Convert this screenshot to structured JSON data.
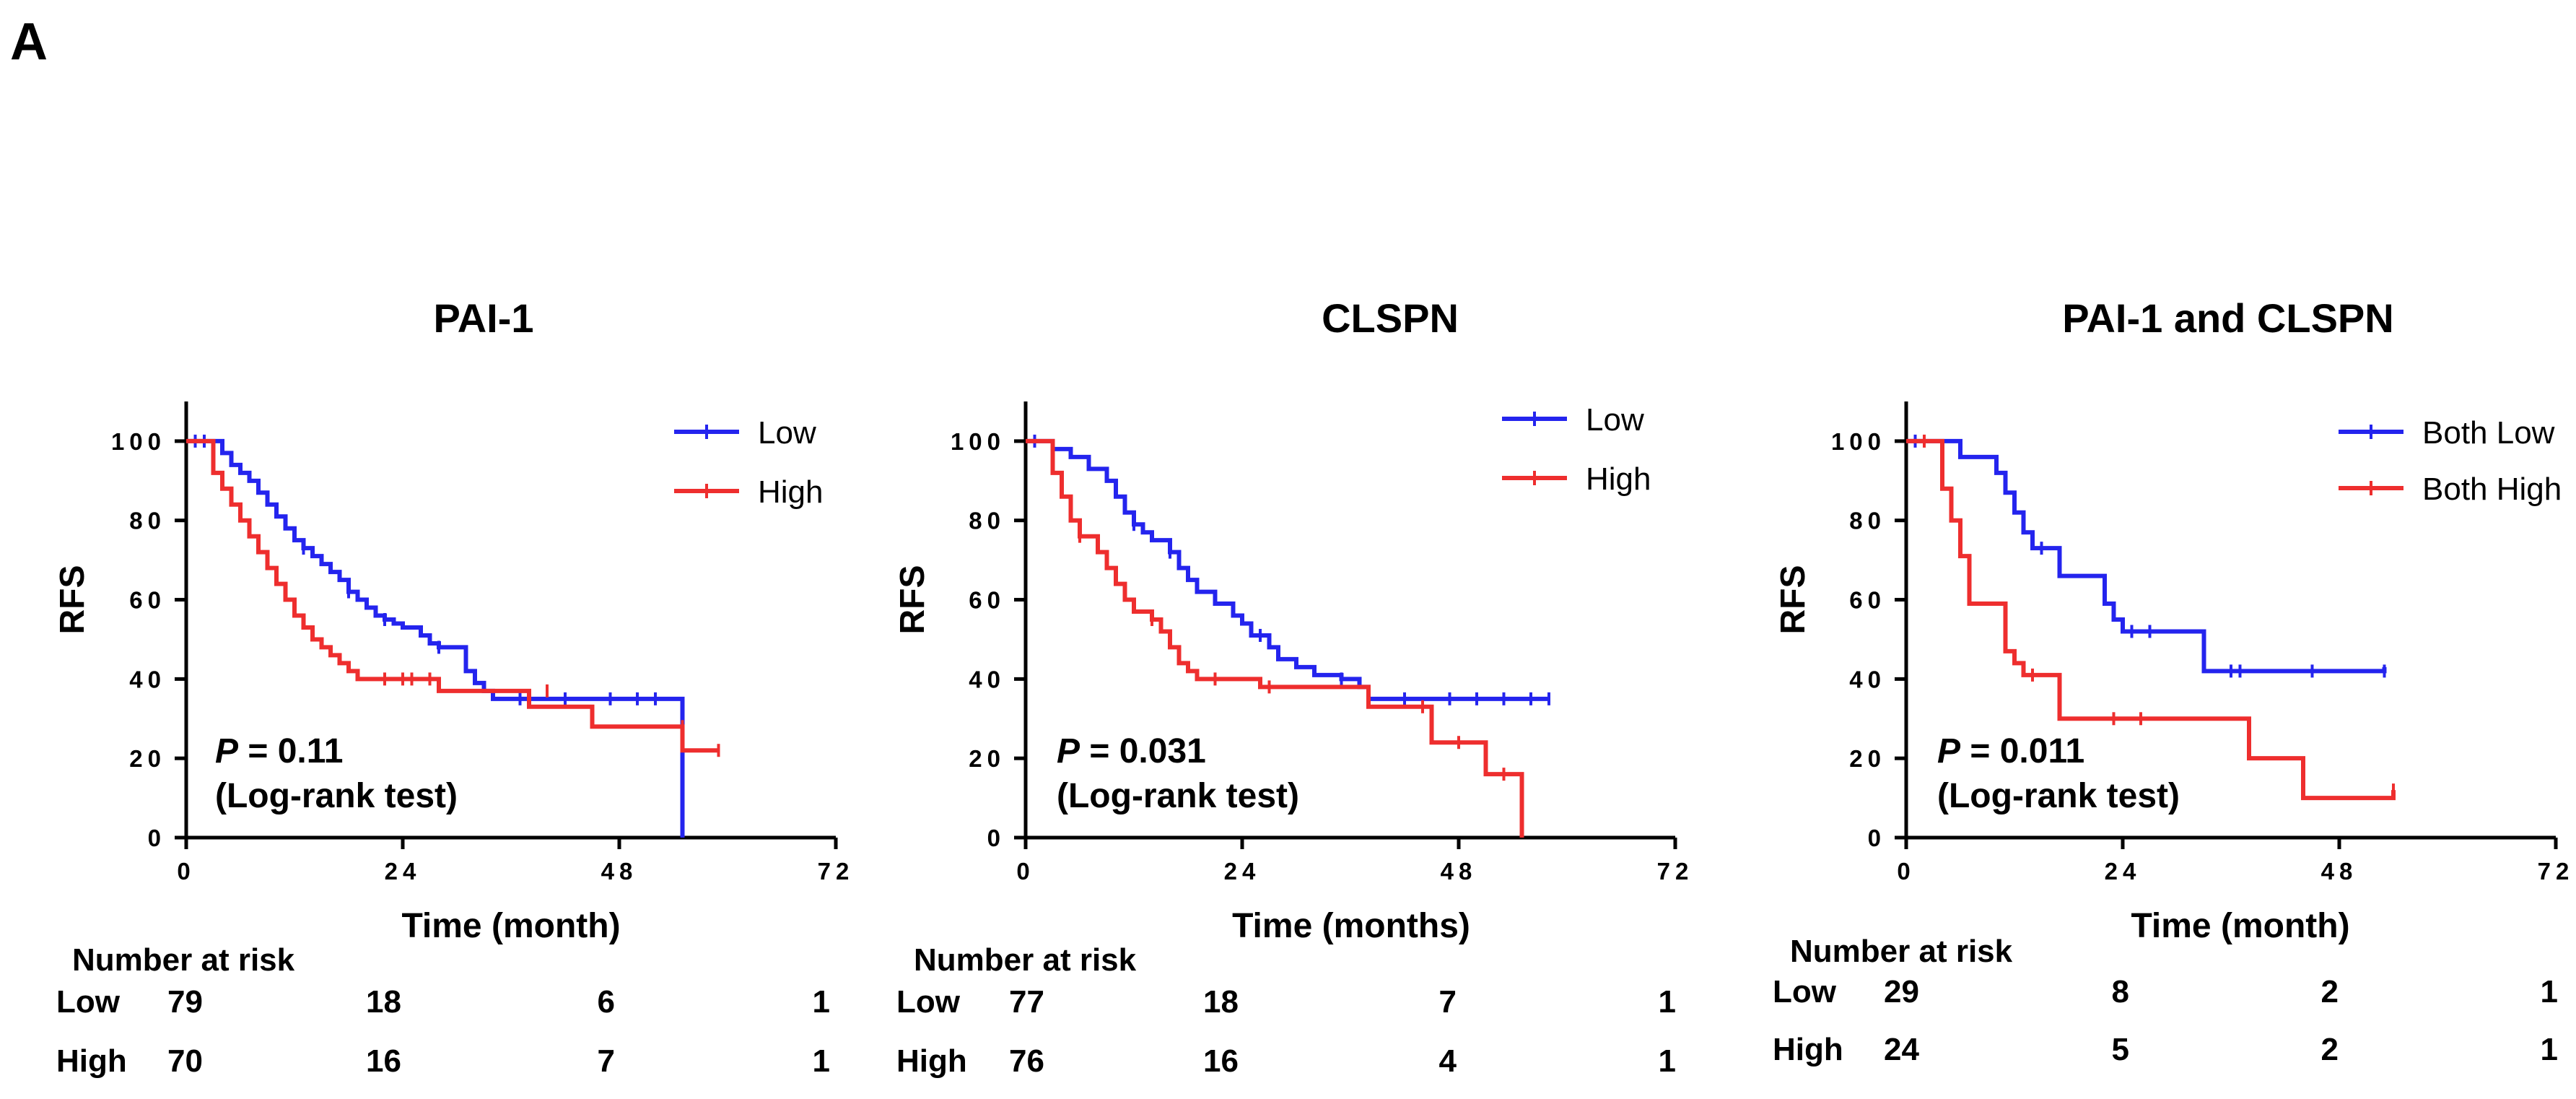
{
  "panel_label": "A",
  "colors": {
    "low": "#2424ee",
    "high": "#ee2e2e",
    "axis": "#000000"
  },
  "chart_data": [
    {
      "type": "line",
      "title": "PAI-1",
      "xlabel": "Time (month)",
      "ylabel": "RFS",
      "xlim": [
        0,
        72
      ],
      "ylim": [
        0,
        110
      ],
      "xticks": [
        "0",
        "24",
        "48",
        "72"
      ],
      "yticks": [
        "0",
        "20",
        "40",
        "60",
        "80",
        "100"
      ],
      "pvalue": {
        "prefix": "P",
        "text": "= 0.11",
        "test": "(Log-rank test)"
      },
      "legend": [
        "Low",
        "High"
      ],
      "series": [
        {
          "name": "Low",
          "steps": [
            [
              0,
              100
            ],
            [
              3,
              100
            ],
            [
              4,
              97
            ],
            [
              5,
              94
            ],
            [
              6,
              92
            ],
            [
              7,
              90
            ],
            [
              8,
              87
            ],
            [
              9,
              84
            ],
            [
              10,
              81
            ],
            [
              11,
              78
            ],
            [
              12,
              75
            ],
            [
              13,
              73
            ],
            [
              14,
              71
            ],
            [
              15,
              69
            ],
            [
              16,
              67
            ],
            [
              17,
              65
            ],
            [
              18,
              62
            ],
            [
              19,
              60
            ],
            [
              20,
              58
            ],
            [
              21,
              56
            ],
            [
              22,
              55
            ],
            [
              23,
              54
            ],
            [
              24,
              53
            ],
            [
              26,
              51
            ],
            [
              27,
              49
            ],
            [
              28,
              48
            ],
            [
              30,
              48
            ],
            [
              31,
              42
            ],
            [
              32,
              39
            ],
            [
              33,
              37
            ],
            [
              34,
              35
            ],
            [
              55,
              35
            ],
            [
              55,
              0
            ]
          ],
          "censored": [
            [
              1,
              100
            ],
            [
              2,
              100
            ],
            [
              13,
              73
            ],
            [
              18,
              62
            ],
            [
              22,
              55
            ],
            [
              28,
              48
            ],
            [
              37,
              35
            ],
            [
              42,
              35
            ],
            [
              47,
              35
            ],
            [
              50,
              35
            ],
            [
              52,
              35
            ]
          ]
        },
        {
          "name": "High",
          "steps": [
            [
              0,
              100
            ],
            [
              2,
              100
            ],
            [
              3,
              92
            ],
            [
              4,
              88
            ],
            [
              5,
              84
            ],
            [
              6,
              80
            ],
            [
              7,
              76
            ],
            [
              8,
              72
            ],
            [
              9,
              68
            ],
            [
              10,
              64
            ],
            [
              11,
              60
            ],
            [
              12,
              56
            ],
            [
              13,
              53
            ],
            [
              14,
              50
            ],
            [
              15,
              48
            ],
            [
              16,
              46
            ],
            [
              17,
              44
            ],
            [
              18,
              42
            ],
            [
              19,
              40
            ],
            [
              20,
              40
            ],
            [
              27,
              40
            ],
            [
              28,
              37
            ],
            [
              38,
              37
            ],
            [
              38,
              33
            ],
            [
              45,
              33
            ],
            [
              45,
              28
            ],
            [
              55,
              28
            ],
            [
              55,
              22
            ],
            [
              59,
              22
            ]
          ],
          "censored": [
            [
              22,
              40
            ],
            [
              24,
              40
            ],
            [
              25,
              40
            ],
            [
              27,
              40
            ],
            [
              40,
              37
            ],
            [
              55,
              28
            ],
            [
              59,
              22
            ]
          ]
        }
      ],
      "risk_table": {
        "title": "Number at risk",
        "rows": [
          {
            "label": "Low",
            "values": [
              "79",
              "18",
              "6",
              "1"
            ]
          },
          {
            "label": "High",
            "values": [
              "70",
              "16",
              "7",
              "1"
            ]
          }
        ]
      }
    },
    {
      "type": "line",
      "title": "CLSPN",
      "xlabel": "Time (months)",
      "ylabel": "RFS",
      "xlim": [
        0,
        72
      ],
      "ylim": [
        0,
        110
      ],
      "xticks": [
        "0",
        "24",
        "48",
        "72"
      ],
      "yticks": [
        "0",
        "20",
        "40",
        "60",
        "80",
        "100"
      ],
      "pvalue": {
        "prefix": "P",
        "text": "= 0.031",
        "test": "(Log-rank test)"
      },
      "legend": [
        "Low",
        "High"
      ],
      "series": [
        {
          "name": "Low",
          "steps": [
            [
              0,
              100
            ],
            [
              2,
              100
            ],
            [
              3,
              98
            ],
            [
              5,
              96
            ],
            [
              7,
              93
            ],
            [
              9,
              90
            ],
            [
              10,
              86
            ],
            [
              11,
              82
            ],
            [
              12,
              79
            ],
            [
              13,
              77
            ],
            [
              14,
              75
            ],
            [
              16,
              72
            ],
            [
              17,
              68
            ],
            [
              18,
              65
            ],
            [
              19,
              62
            ],
            [
              21,
              59
            ],
            [
              23,
              56
            ],
            [
              24,
              54
            ],
            [
              25,
              51
            ],
            [
              27,
              48
            ],
            [
              28,
              45
            ],
            [
              30,
              43
            ],
            [
              32,
              41
            ],
            [
              35,
              40
            ],
            [
              37,
              38
            ],
            [
              38,
              35
            ],
            [
              58,
              35
            ]
          ],
          "censored": [
            [
              1,
              100
            ],
            [
              12,
              79
            ],
            [
              16,
              72
            ],
            [
              26,
              51
            ],
            [
              35,
              40
            ],
            [
              38,
              35
            ],
            [
              42,
              35
            ],
            [
              47,
              35
            ],
            [
              50,
              35
            ],
            [
              53,
              35
            ],
            [
              56,
              35
            ],
            [
              58,
              35
            ]
          ]
        },
        {
          "name": "High",
          "steps": [
            [
              0,
              100
            ],
            [
              2,
              100
            ],
            [
              3,
              92
            ],
            [
              4,
              86
            ],
            [
              5,
              80
            ],
            [
              6,
              76
            ],
            [
              8,
              72
            ],
            [
              9,
              68
            ],
            [
              10,
              64
            ],
            [
              11,
              60
            ],
            [
              12,
              57
            ],
            [
              14,
              55
            ],
            [
              15,
              52
            ],
            [
              16,
              48
            ],
            [
              17,
              44
            ],
            [
              18,
              42
            ],
            [
              19,
              40
            ],
            [
              25,
              40
            ],
            [
              26,
              38
            ],
            [
              37,
              38
            ],
            [
              38,
              33
            ],
            [
              44,
              33
            ],
            [
              45,
              24
            ],
            [
              51,
              24
            ],
            [
              51,
              16
            ],
            [
              55,
              16
            ],
            [
              55,
              0
            ]
          ],
          "censored": [
            [
              6,
              76
            ],
            [
              14,
              55
            ],
            [
              21,
              40
            ],
            [
              27,
              38
            ],
            [
              44,
              33
            ],
            [
              48,
              24
            ],
            [
              53,
              16
            ]
          ]
        }
      ],
      "risk_table": {
        "title": "Number at risk",
        "rows": [
          {
            "label": "Low",
            "values": [
              "77",
              "18",
              "7",
              "1"
            ]
          },
          {
            "label": "High",
            "values": [
              "76",
              "16",
              "4",
              "1"
            ]
          }
        ]
      }
    },
    {
      "type": "line",
      "title": "PAI-1 and CLSPN",
      "xlabel": "Time (month)",
      "ylabel": "RFS",
      "xlim": [
        0,
        72
      ],
      "ylim": [
        0,
        110
      ],
      "xticks": [
        "0",
        "24",
        "48",
        "72"
      ],
      "yticks": [
        "0",
        "20",
        "40",
        "60",
        "80",
        "100"
      ],
      "pvalue": {
        "prefix": "P",
        "text": "= 0.011",
        "test": "(Log-rank test)"
      },
      "legend": [
        "Both Low",
        "Both High"
      ],
      "series": [
        {
          "name": "Both Low",
          "steps": [
            [
              0,
              100
            ],
            [
              5,
              100
            ],
            [
              6,
              96
            ],
            [
              9,
              96
            ],
            [
              10,
              92
            ],
            [
              11,
              87
            ],
            [
              12,
              82
            ],
            [
              13,
              77
            ],
            [
              14,
              73
            ],
            [
              16,
              73
            ],
            [
              17,
              66
            ],
            [
              21,
              66
            ],
            [
              22,
              59
            ],
            [
              23,
              55
            ],
            [
              24,
              52
            ],
            [
              33,
              52
            ],
            [
              33,
              42
            ],
            [
              53,
              42
            ],
            [
              53,
              43
            ]
          ],
          "censored": [
            [
              1,
              100
            ],
            [
              15,
              73
            ],
            [
              25,
              52
            ],
            [
              27,
              52
            ],
            [
              36,
              42
            ],
            [
              37,
              42
            ],
            [
              45,
              42
            ],
            [
              53,
              42
            ]
          ]
        },
        {
          "name": "Both High",
          "steps": [
            [
              0,
              100
            ],
            [
              3,
              100
            ],
            [
              4,
              88
            ],
            [
              5,
              80
            ],
            [
              6,
              71
            ],
            [
              7,
              59
            ],
            [
              10,
              59
            ],
            [
              11,
              47
            ],
            [
              12,
              44
            ],
            [
              13,
              41
            ],
            [
              16,
              41
            ],
            [
              17,
              30
            ],
            [
              38,
              30
            ],
            [
              38,
              20
            ],
            [
              44,
              20
            ],
            [
              44,
              10
            ],
            [
              54,
              10
            ],
            [
              54,
              12
            ]
          ],
          "censored": [
            [
              2,
              100
            ],
            [
              14,
              41
            ],
            [
              23,
              30
            ],
            [
              26,
              30
            ],
            [
              54,
              12
            ]
          ]
        }
      ],
      "risk_table": {
        "title": "Number at risk",
        "rows": [
          {
            "label": "Low",
            "values": [
              "29",
              "8",
              "2",
              "1"
            ]
          },
          {
            "label": "High",
            "values": [
              "24",
              "5",
              "2",
              "1"
            ]
          }
        ]
      }
    }
  ]
}
